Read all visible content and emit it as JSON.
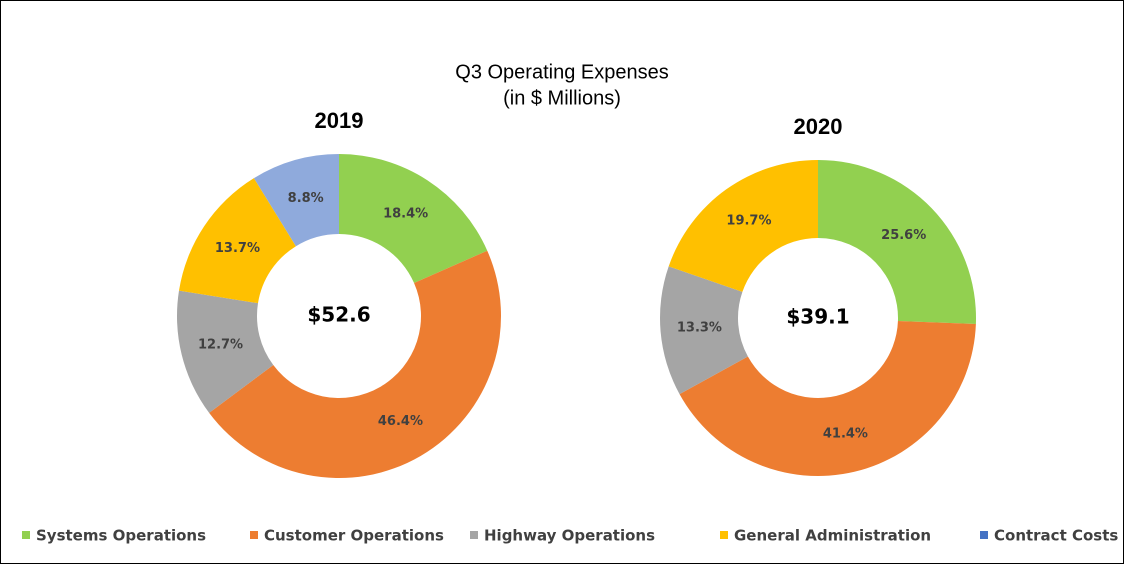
{
  "title": "Q3 Operating Expenses",
  "subtitle": "(in $ Millions)",
  "legend_colors": [
    "#92d050",
    "#ed7d31",
    "#a5a5a5",
    "#ffc000",
    "#4472c4"
  ],
  "chart_data": [
    {
      "type": "pie",
      "title": "2019",
      "total": {
        "value": 52.6,
        "label": "$52.6"
      },
      "categories": [
        "Systems Operations",
        "Customer Operations",
        "Highway Operations",
        "General Administration",
        "Contract Costs"
      ],
      "values": [
        18.4,
        46.4,
        12.7,
        13.7,
        8.8
      ],
      "value_labels": [
        "18.4%",
        "46.4%",
        "12.7%",
        "13.7%",
        "8.8%"
      ],
      "colors": [
        "#92d050",
        "#ed7d31",
        "#a5a5a5",
        "#ffc000",
        "#8faadc"
      ]
    },
    {
      "type": "pie",
      "title": "2020",
      "total": {
        "value": 39.1,
        "label": "$39.1"
      },
      "categories": [
        "Systems Operations",
        "Customer Operations",
        "Highway Operations",
        "General Administration",
        "Contract Costs"
      ],
      "values": [
        25.6,
        41.4,
        13.3,
        19.7,
        null
      ],
      "value_labels": [
        "25.6%",
        "41.4%",
        "13.3%",
        "19.7%",
        null
      ],
      "colors": [
        "#92d050",
        "#ed7d31",
        "#a5a5a5",
        "#ffc000",
        "#8faadc"
      ]
    }
  ]
}
